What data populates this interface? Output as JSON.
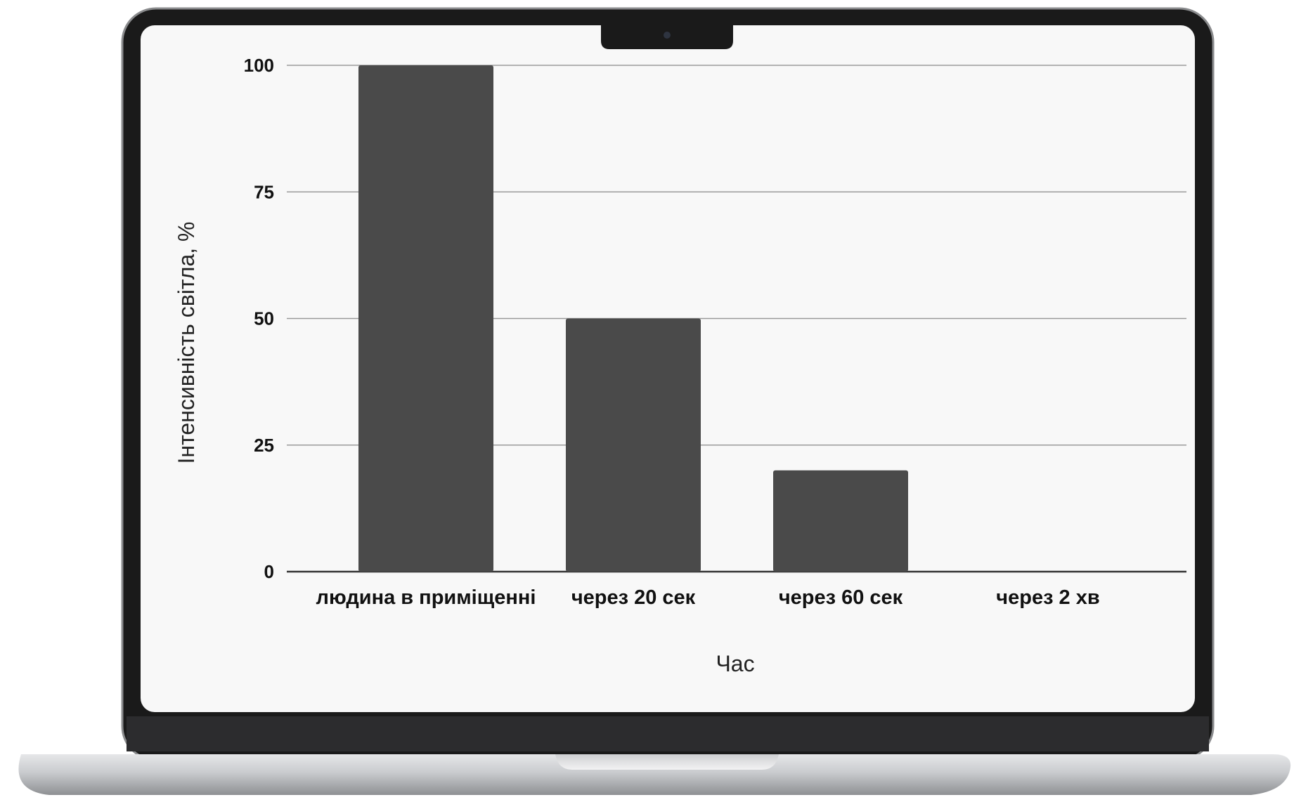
{
  "chart_data": {
    "type": "bar",
    "categories": [
      "людина в приміщенні",
      "через 20 сек",
      "через 60 сек",
      "через 2 хв"
    ],
    "values": [
      100,
      50,
      20,
      0
    ],
    "xlabel": "Час",
    "ylabel": "Інтенсивність світла, %",
    "ylim": [
      0,
      100
    ],
    "yticks": [
      0,
      25,
      50,
      75,
      100
    ],
    "grid": true,
    "bar_color": "#4a4a4a"
  }
}
